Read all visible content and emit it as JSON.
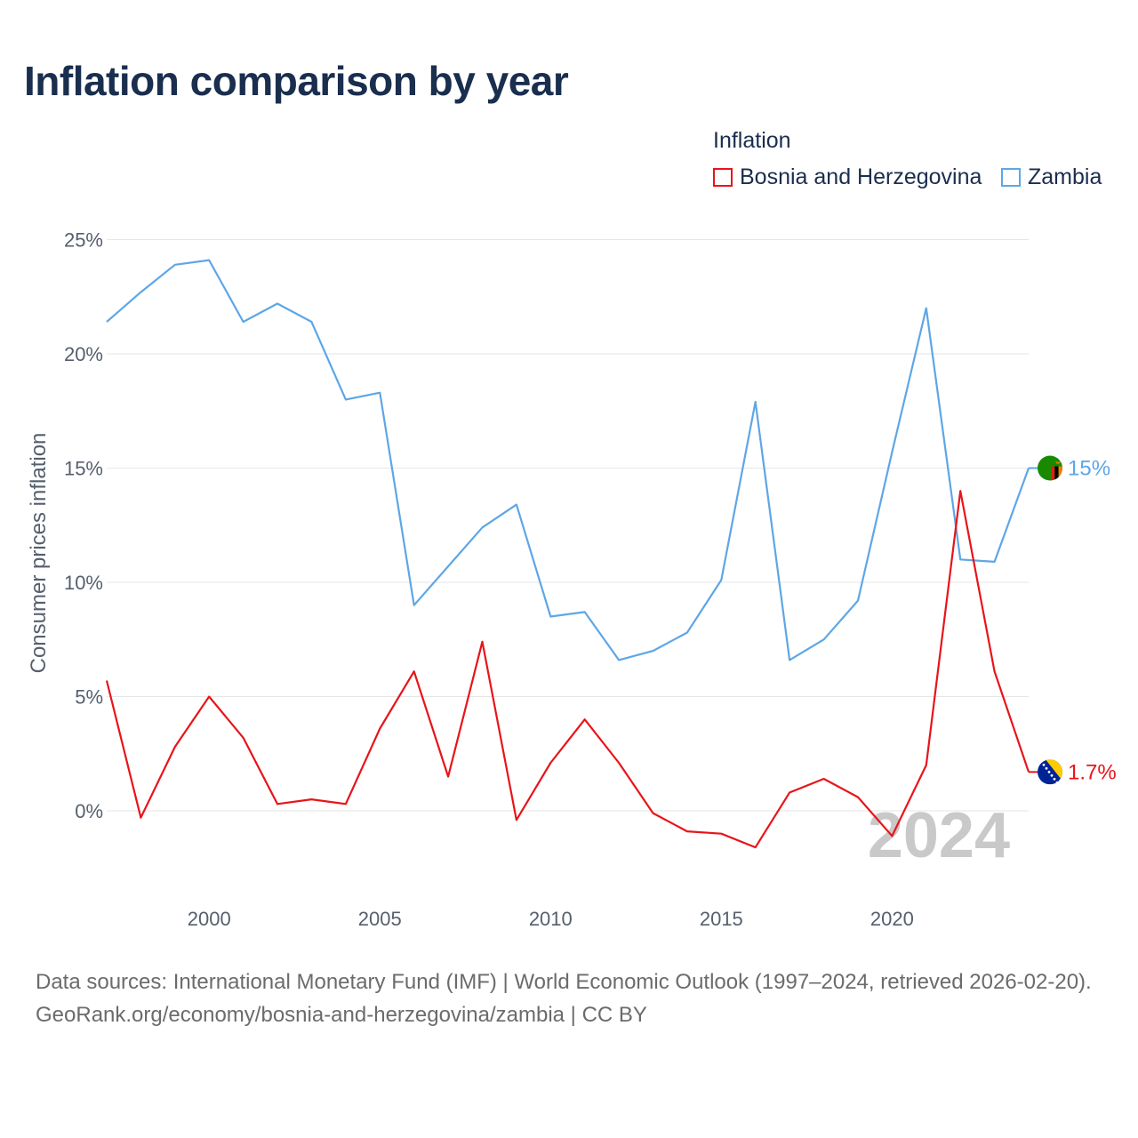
{
  "page": {
    "title": "Inflation comparison by year",
    "footer": {
      "sources": "Data sources: International Monetary Fund (IMF) | World Economic Outlook (1997–2024, retrieved 2026-02-20).",
      "credit": "GeoRank.org/economy/bosnia-and-herzegovina/zambia | CC BY"
    }
  },
  "legend": {
    "title": "Inflation",
    "items": [
      {
        "name": "Bosnia and Herzegovina",
        "color": "#e8141a"
      },
      {
        "name": "Zambia",
        "color": "#5ea6e6"
      }
    ]
  },
  "chart_data": {
    "type": "line",
    "title": "Inflation comparison by year",
    "xlabel": "",
    "ylabel": "Consumer prices inflation",
    "x": [
      1997,
      1998,
      1999,
      2000,
      2001,
      2002,
      2003,
      2004,
      2005,
      2006,
      2007,
      2008,
      2009,
      2010,
      2011,
      2012,
      2013,
      2014,
      2015,
      2016,
      2017,
      2018,
      2019,
      2020,
      2021,
      2022,
      2023,
      2024
    ],
    "xlim": [
      1997,
      2024
    ],
    "ylim": [
      -4,
      26
    ],
    "x_ticks": [
      2000,
      2005,
      2010,
      2015,
      2020
    ],
    "x_tick_labels": [
      "2000",
      "2005",
      "2010",
      "2015",
      "2020"
    ],
    "y_ticks": [
      0,
      5,
      10,
      15,
      20,
      25
    ],
    "y_tick_labels": [
      "0%",
      "5%",
      "10%",
      "15%",
      "20%",
      "25%"
    ],
    "grid": true,
    "legend_position": "top-right",
    "year_label": "2024",
    "series": [
      {
        "name": "Bosnia and Herzegovina",
        "color": "#e8141a",
        "end_label": "1.7%",
        "values": [
          5.7,
          -0.3,
          2.8,
          5.0,
          3.2,
          0.3,
          0.5,
          0.3,
          3.6,
          6.1,
          1.5,
          7.4,
          -0.4,
          2.1,
          4.0,
          2.1,
          -0.1,
          -0.9,
          -1.0,
          -1.6,
          0.8,
          1.4,
          0.6,
          -1.1,
          2.0,
          14.0,
          6.1,
          1.7
        ]
      },
      {
        "name": "Zambia",
        "color": "#5ea6e6",
        "end_label": "15%",
        "values": [
          21.4,
          22.7,
          23.9,
          24.1,
          21.4,
          22.2,
          21.4,
          18.0,
          18.3,
          9.0,
          10.7,
          12.4,
          13.4,
          8.5,
          8.7,
          6.6,
          7.0,
          7.8,
          10.1,
          17.9,
          6.6,
          7.5,
          9.2,
          15.7,
          22.0,
          11.0,
          10.9,
          15.0
        ]
      }
    ]
  }
}
